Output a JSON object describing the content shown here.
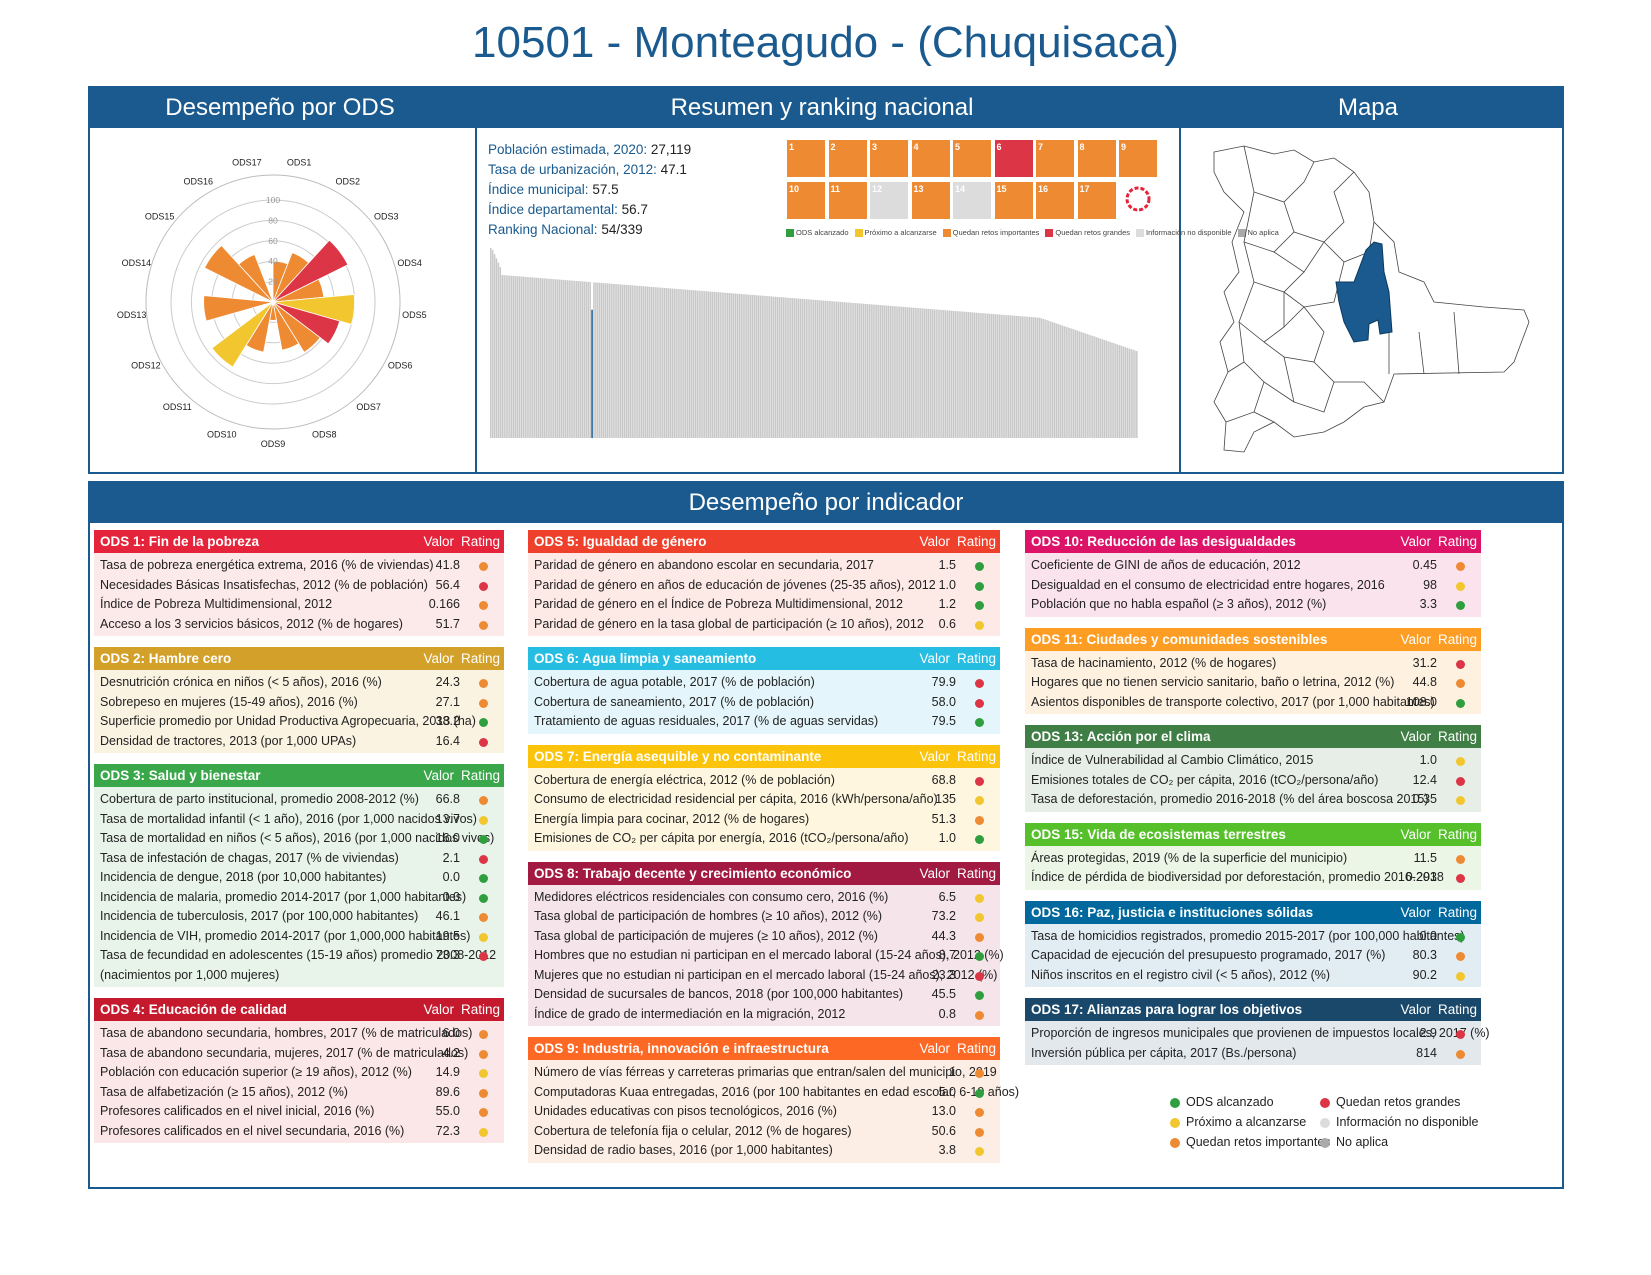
{
  "title": "10501 - Monteagudo - (Chuquisaca)",
  "panels": {
    "ods": "Desempeño por ODS",
    "resumen": "Resumen y ranking nacional",
    "mapa": "Mapa",
    "indicador": "Desempeño por indicador"
  },
  "summary": [
    {
      "label": "Población estimada, 2020:",
      "value": "27,119"
    },
    {
      "label": "Tasa de urbanización, 2012:",
      "value": "47.1"
    },
    {
      "label": "Índice municipal:",
      "value": "57.5"
    },
    {
      "label": "Índice departamental:",
      "value": "56.7"
    },
    {
      "label": "Ranking Nacional:",
      "value": "54/339"
    }
  ],
  "sdg_legend": [
    {
      "label": "ODS alcanzado",
      "color": "#2e9e3f"
    },
    {
      "label": "Próximo a alcanzarse",
      "color": "#f2c62e"
    },
    {
      "label": "Quedan retos importantes",
      "color": "#ee8a32"
    },
    {
      "label": "Quedan retos grandes",
      "color": "#dc3545"
    },
    {
      "label": "Información no disponible",
      "color": "#dcdcdc"
    },
    {
      "label": "No aplica",
      "color": "#aaaaaa"
    }
  ],
  "sdg_tile_colors": [
    "#ee8a32",
    "#ee8a32",
    "#ee8a32",
    "#ee8a32",
    "#ee8a32",
    "#dc3545",
    "#ee8a32",
    "#ee8a32",
    "#ee8a32",
    "#ee8a32",
    "#ee8a32",
    "#dcdcdc",
    "#ee8a32",
    "#dcdcdc",
    "#ee8a32",
    "#ee8a32",
    "#ee8a32"
  ],
  "chart_data": [
    {
      "type": "polar-bar",
      "categories": [
        "ODS1",
        "ODS2",
        "ODS3",
        "ODS4",
        "ODS5",
        "ODS6",
        "ODS7",
        "ODS8",
        "ODS9",
        "ODS10",
        "ODS11",
        "ODS12",
        "ODS13",
        "ODS14",
        "ODS15",
        "ODS16",
        "ODS17"
      ],
      "values": [
        40,
        52,
        82,
        50,
        80,
        68,
        58,
        48,
        18,
        50,
        75,
        0,
        68,
        0,
        75,
        50,
        0
      ],
      "colors": [
        "#ee8a32",
        "#ee8a32",
        "#dc3545",
        "#ee8a32",
        "#f2c62e",
        "#dc3545",
        "#ee8a32",
        "#ee8a32",
        "#ee8a32",
        "#ee8a32",
        "#f2c62e",
        "#dcdcdc",
        "#ee8a32",
        "#dcdcdc",
        "#ee8a32",
        "#ee8a32",
        "#dcdcdc"
      ],
      "radial_ticks": [
        "20",
        "40",
        "60",
        "80",
        "100"
      ],
      "rmax": 100
    },
    {
      "type": "bar",
      "description_role": "national ranking",
      "n_municipalities": 339,
      "highlight_rank": 54,
      "highlight_value": 57.5,
      "range": [
        40,
        90
      ]
    }
  ],
  "legend_bottom": [
    {
      "label": "ODS alcanzado",
      "color": "#2e9e3f"
    },
    {
      "label": "Próximo a alcanzarse",
      "color": "#f2c62e"
    },
    {
      "label": "Quedan retos importantes",
      "color": "#ee8a32"
    },
    {
      "label": "Quedan retos grandes",
      "color": "#dc3545"
    },
    {
      "label": "Información no disponible",
      "color": "#dcdcdc"
    },
    {
      "label": "No aplica",
      "color": "#aaaaaa"
    }
  ],
  "rating_colors": {
    "g": "#2e9e3f",
    "y": "#f2c62e",
    "o": "#ee8a32",
    "r": "#dc3545"
  },
  "col_headers": {
    "valor": "Valor",
    "rating": "Rating"
  },
  "blocks": [
    {
      "title": "ODS 1: Fin de la pobreza",
      "color": "#e5243b",
      "bg": "#fce9ea",
      "col": 0,
      "rows": [
        [
          "Tasa de pobreza energética extrema, 2016 (% de viviendas)",
          "41.8",
          "o"
        ],
        [
          "Necesidades Básicas Insatisfechas, 2012 (% de población)",
          "56.4",
          "r"
        ],
        [
          "Índice de Pobreza Multidimensional, 2012",
          "0.166",
          "o"
        ],
        [
          "Acceso a los 3 servicios básicos, 2012 (% de hogares)",
          "51.7",
          "o"
        ]
      ]
    },
    {
      "title": "ODS 2: Hambre cero",
      "color": "#d3a029",
      "bg": "#fbf3e2",
      "col": 0,
      "rows": [
        [
          "Desnutrición crónica en niños (< 5 años), 2016 (%)",
          "24.3",
          "o"
        ],
        [
          "Sobrepeso en mujeres (15-49 años), 2016 (%)",
          "27.1",
          "o"
        ],
        [
          "Superficie promedio por Unidad Productiva Agropecuaria, 2013 (ha)",
          "38.2",
          "g"
        ],
        [
          "Densidad de tractores, 2013 (por 1,000 UPAs)",
          "16.4",
          "r"
        ]
      ]
    },
    {
      "title": "ODS 3: Salud y bienestar",
      "color": "#3aa84a",
      "bg": "#e8f4ea",
      "col": 0,
      "rows": [
        [
          "Cobertura de parto institucional, promedio 2008-2012 (%)",
          "66.8",
          "o"
        ],
        [
          "Tasa de mortalidad infantil (< 1 año), 2016 (por 1,000 nacidos vivos)",
          "13.7",
          "y"
        ],
        [
          "Tasa de mortalidad en niños (< 5 años), 2016 (por 1,000 nacidos vivos)",
          "16.0",
          "g"
        ],
        [
          "Tasa de infestación de chagas, 2017 (% de viviendas)",
          "2.1",
          "r"
        ],
        [
          "Incidencia de dengue, 2018 (por 10,000 habitantes)",
          "0.0",
          "g"
        ],
        [
          "Incidencia de malaria, promedio 2014-2017 (por 1,000 habitantes)",
          "0.0",
          "g"
        ],
        [
          "Incidencia de tuberculosis, 2017 (por 100,000 habitantes)",
          "46.1",
          "o"
        ],
        [
          "Incidencia de VIH, promedio 2014-2017 (por 1,000,000 habitantes)",
          "19.5",
          "y"
        ],
        [
          "Tasa de fecundidad en adolescentes (15-19 años) promedio 2008-2012",
          "73.3",
          "r"
        ],
        [
          " (nacimientos por 1,000 mujeres)",
          "",
          ""
        ]
      ]
    },
    {
      "title": "ODS 4: Educación de calidad",
      "color": "#c5192d",
      "bg": "#fbe6e8",
      "col": 0,
      "rows": [
        [
          "Tasa de abandono secundaria, hombres, 2017 (% de matriculados)",
          "6.0",
          "o"
        ],
        [
          "Tasa de abandono secundaria, mujeres, 2017 (% de matriculados)",
          "4.2",
          "o"
        ],
        [
          "Población con educación superior (≥ 19 años), 2012 (%)",
          "14.9",
          "y"
        ],
        [
          "Tasa de alfabetización (≥ 15 años), 2012 (%)",
          "89.6",
          "o"
        ],
        [
          "Profesores calificados en el nivel inicial, 2016 (%)",
          "55.0",
          "o"
        ],
        [
          "Profesores calificados en el nivel secundaria, 2016 (%)",
          "72.3",
          "y"
        ]
      ]
    },
    {
      "title": "ODS 5: Igualdad de género",
      "color": "#ef402b",
      "bg": "#fde9e6",
      "col": 1,
      "rows": [
        [
          "Paridad de género en abandono escolar en secundaria, 2017",
          "1.5",
          "g"
        ],
        [
          "Paridad de género en años de educación de jóvenes (25-35 años), 2012",
          "1.0",
          "g"
        ],
        [
          "Paridad de género en el Índice de Pobreza Multidimensional, 2012",
          "1.2",
          "g"
        ],
        [
          "Paridad de género en la tasa global de participación (≥ 10 años), 2012",
          "0.6",
          "y"
        ]
      ]
    },
    {
      "title": "ODS 6: Agua limpia y saneamiento",
      "color": "#26bde2",
      "bg": "#e4f6fb",
      "col": 1,
      "rows": [
        [
          "Cobertura de agua potable, 2017 (% de población)",
          "79.9",
          "r"
        ],
        [
          "Cobertura de saneamiento, 2017 (% de población)",
          "58.0",
          "r"
        ],
        [
          "Tratamiento de aguas residuales, 2017 (% de aguas servidas)",
          "79.5",
          "g"
        ]
      ]
    },
    {
      "title": "ODS 7: Energía asequible y no contaminante",
      "color": "#fcc30b",
      "bg": "#fef6de",
      "col": 1,
      "rows": [
        [
          "Cobertura de energía eléctrica, 2012 (% de población)",
          "68.8",
          "r"
        ],
        [
          "Consumo de electricidad residencial per cápita, 2016 (kWh/persona/año)",
          "135",
          "y"
        ],
        [
          "Energía limpia para cocinar, 2012 (% de hogares)",
          "51.3",
          "o"
        ],
        [
          "Emisiones de CO₂ per cápita por energía, 2016 (tCO₂/persona/año)",
          "1.0",
          "g"
        ]
      ]
    },
    {
      "title": "ODS 8: Trabajo decente y crecimiento económico",
      "color": "#a21942",
      "bg": "#f5e4ea",
      "col": 1,
      "rows": [
        [
          "Medidores eléctricos residenciales con consumo cero, 2016 (%)",
          "6.5",
          "y"
        ],
        [
          "Tasa global de participación de hombres (≥ 10 años), 2012 (%)",
          "73.2",
          "y"
        ],
        [
          "Tasa global de participación de mujeres (≥ 10 años), 2012 (%)",
          "44.3",
          "o"
        ],
        [
          "Hombres que no estudian ni participan en el mercado laboral (15-24 años), 2012 (%)",
          "8.7",
          "g"
        ],
        [
          "Mujeres que no estudian ni participan en el mercado laboral (15-24 años), 2012 (%)",
          "23.3",
          "r"
        ],
        [
          "Densidad de sucursales de bancos, 2018 (por 100,000 habitantes)",
          "45.5",
          "g"
        ],
        [
          "Índice de grado de intermediación en la migración, 2012",
          "0.8",
          "o"
        ]
      ]
    },
    {
      "title": "ODS 9: Industria, innovación e infraestructura",
      "color": "#fd6925",
      "bg": "#fdeee5",
      "col": 1,
      "rows": [
        [
          "Número de vías férreas y carreteras primarias que entran/salen del municipio, 2019",
          "1",
          "o"
        ],
        [
          "Computadoras Kuaa entregadas, 2016 (por 100 habitantes en edad escolar, 6-19 años)",
          "5.0",
          "g"
        ],
        [
          "Unidades educativas con pisos tecnológicos, 2016 (%)",
          "13.0",
          "o"
        ],
        [
          "Cobertura de telefonía fija o celular, 2012 (% de hogares)",
          "50.6",
          "o"
        ],
        [
          "Densidad de radio bases, 2016 (por 1,000 habitantes)",
          "3.8",
          "y"
        ]
      ]
    },
    {
      "title": "ODS 10: Reducción de las desigualdades",
      "color": "#dd1367",
      "bg": "#fbe3ee",
      "col": 2,
      "rows": [
        [
          "Coeficiente de GINI de años de educación, 2012",
          "0.45",
          "o"
        ],
        [
          "Desigualdad en el consumo de electricidad entre hogares, 2016",
          "98",
          "y"
        ],
        [
          "Población que no habla español (≥ 3 años), 2012 (%)",
          "3.3",
          "g"
        ]
      ]
    },
    {
      "title": "ODS 11: Ciudades y comunidades sostenibles",
      "color": "#fd9d24",
      "bg": "#fef1e0",
      "col": 2,
      "rows": [
        [
          "Tasa de hacinamiento, 2012 (% de hogares)",
          "31.2",
          "r"
        ],
        [
          "Hogares que no tienen servicio sanitario, baño o letrina, 2012 (%)",
          "44.8",
          "o"
        ],
        [
          "Asientos disponibles de transporte colectivo, 2017 (por 1,000 habitantes)",
          "108.0",
          "g"
        ]
      ]
    },
    {
      "title": "ODS 13: Acción por el clima",
      "color": "#3f7e44",
      "bg": "#e7eee7",
      "col": 2,
      "rows": [
        [
          "Índice de Vulnerabilidad al Cambio Climático, 2015",
          "1.0",
          "y"
        ],
        [
          "Emisiones totales de CO₂ per cápita, 2016 (tCO₂/persona/año)",
          "12.4",
          "r"
        ],
        [
          "Tasa de deforestación, promedio 2016-2018 (% del área boscosa 2015)",
          "0.35",
          "y"
        ]
      ]
    },
    {
      "title": "ODS 15: Vida de ecosistemas terrestres",
      "color": "#56c02b",
      "bg": "#ebf6e6",
      "col": 2,
      "rows": [
        [
          "Áreas protegidas, 2019 (% de la superficie del municipio)",
          "11.5",
          "o"
        ],
        [
          "Índice de pérdida de biodiversidad por deforestación, promedio 2016-2018",
          "0.293",
          "r"
        ]
      ]
    },
    {
      "title": "ODS 16: Paz, justicia e instituciones sólidas",
      "color": "#00689d",
      "bg": "#e2edf3",
      "col": 2,
      "rows": [
        [
          "Tasa de homicidios registrados, promedio 2015-2017 (por 100,000 habitantes)",
          "0.0",
          "g"
        ],
        [
          "Capacidad de ejecución del presupuesto programado, 2017 (%)",
          "80.3",
          "o"
        ],
        [
          "Niños inscritos en el registro civil (< 5 años), 2012 (%)",
          "90.2",
          "y"
        ]
      ]
    },
    {
      "title": "ODS 17: Alianzas para lograr los objetivos",
      "color": "#19486a",
      "bg": "#e3e8ed",
      "col": 2,
      "rows": [
        [
          "Proporción de ingresos municipales que provienen de impuestos locales, 2017 (%)",
          "2.9",
          "r"
        ],
        [
          "Inversión pública per cápita, 2017 (Bs./persona)",
          "814",
          "o"
        ]
      ]
    }
  ]
}
